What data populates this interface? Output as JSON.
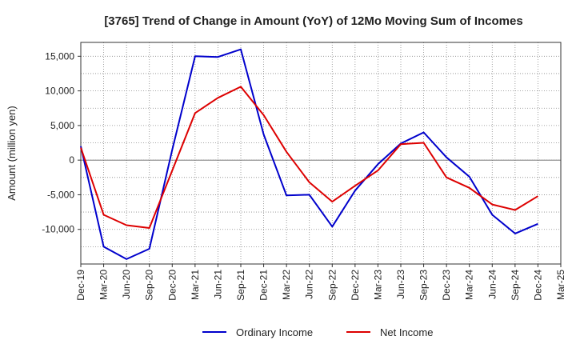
{
  "chart_data": {
    "type": "line",
    "title": "[3765]  Trend of Change in Amount (YoY) of 12Mo Moving Sum of Incomes",
    "xlabel": "",
    "ylabel": "Amount (million yen)",
    "categories": [
      "Dec-19",
      "Mar-20",
      "Jun-20",
      "Sep-20",
      "Dec-20",
      "Mar-21",
      "Jun-21",
      "Sep-21",
      "Dec-21",
      "Mar-22",
      "Jun-22",
      "Sep-22",
      "Dec-22",
      "Mar-23",
      "Jun-23",
      "Sep-23",
      "Dec-23",
      "Mar-24",
      "Jun-24",
      "Sep-24",
      "Dec-24",
      "Mar-25"
    ],
    "ylim": [
      -15000,
      17000
    ],
    "yticks": [
      -10000,
      -5000,
      0,
      5000,
      10000,
      15000
    ],
    "ytick_labels": [
      "-10,000",
      "-5,000",
      "0",
      "5,000",
      "10,000",
      "15,000"
    ],
    "grid": true,
    "legend_position": "bottom",
    "series": [
      {
        "name": "Ordinary Income",
        "color": "#0000cc",
        "values": [
          2000,
          -12500,
          -14300,
          -12800,
          1500,
          15000,
          14900,
          16000,
          3700,
          -5100,
          -5000,
          -9600,
          -4400,
          -600,
          2400,
          4000,
          400,
          -2400,
          -7900,
          -10600,
          -9200,
          null
        ]
      },
      {
        "name": "Net Income",
        "color": "#dd0000",
        "values": [
          1800,
          -7900,
          -9400,
          -9800,
          -1500,
          6800,
          9000,
          10600,
          6500,
          1200,
          -3200,
          -6000,
          -3700,
          -1500,
          2300,
          2500,
          -2500,
          -4000,
          -6400,
          -7200,
          -5200,
          null
        ]
      }
    ]
  }
}
